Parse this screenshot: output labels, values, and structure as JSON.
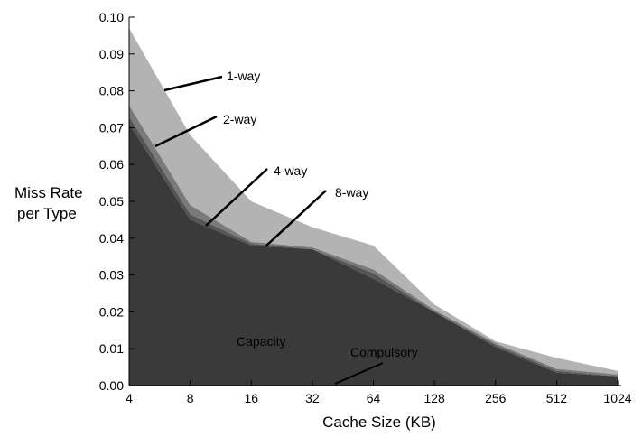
{
  "chart_data": {
    "type": "area",
    "title": "",
    "xlabel": "Cache Size (KB)",
    "ylabel": [
      "Miss Rate",
      "per Type"
    ],
    "x": [
      "4",
      "8",
      "16",
      "32",
      "64",
      "128",
      "256",
      "512",
      "1024"
    ],
    "xscale": "log2",
    "ylim": [
      0,
      0.1
    ],
    "yticks": [
      "0.00",
      "0.01",
      "0.02",
      "0.03",
      "0.04",
      "0.05",
      "0.06",
      "0.07",
      "0.08",
      "0.09",
      "0.10"
    ],
    "grid": false,
    "series": [
      {
        "name": "1-way",
        "color": "#b3b3b3",
        "values": [
          0.097,
          0.068,
          0.05,
          0.043,
          0.038,
          0.022,
          0.012,
          0.0075,
          0.004
        ]
      },
      {
        "name": "2-way",
        "color": "#7a7a7a",
        "values": [
          0.076,
          0.049,
          0.039,
          0.0375,
          0.0315,
          0.0205,
          0.0115,
          0.0045,
          0.003
        ]
      },
      {
        "name": "4-way",
        "color": "#555555",
        "values": [
          0.073,
          0.0465,
          0.0385,
          0.037,
          0.0305,
          0.02,
          0.011,
          0.004,
          0.0025
        ]
      },
      {
        "name": "8-way",
        "color": "#3a3a3a",
        "values": [
          0.071,
          0.045,
          0.038,
          0.037,
          0.029,
          0.02,
          0.0105,
          0.0035,
          0.0025
        ]
      }
    ],
    "annotations": [
      {
        "text": "1-way",
        "series": "1-way"
      },
      {
        "text": "2-way",
        "series": "2-way"
      },
      {
        "text": "4-way",
        "series": "4-way"
      },
      {
        "text": "8-way",
        "series": "8-way"
      },
      {
        "text": "Capacity"
      },
      {
        "text": "Compulsory"
      }
    ]
  }
}
